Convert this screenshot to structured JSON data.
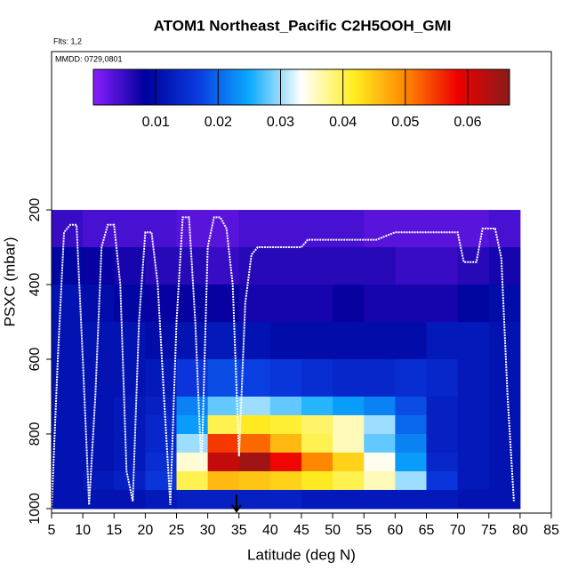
{
  "chart_data": {
    "type": "heatmap",
    "title": "ATOM1 Northeast_Pacific C2H5OOH_GMI",
    "flights_label": "Flts: 1,2",
    "date_label": "MMDD: 0729,0801",
    "x_label": "Latitude (deg N)",
    "y_label": "PSXC (mbar)",
    "xlim": [
      5,
      85
    ],
    "xticks": [
      5,
      10,
      15,
      20,
      25,
      30,
      35,
      40,
      45,
      50,
      55,
      60,
      65,
      70,
      75,
      80,
      85
    ],
    "ylim": [
      1012,
      -224
    ],
    "yticks": [
      200,
      400,
      600,
      800,
      1000
    ],
    "x_edges": [
      5,
      10,
      15,
      20,
      25,
      30,
      35,
      40,
      45,
      50,
      55,
      60,
      65,
      70,
      75,
      80
    ],
    "y_edges": [
      200,
      300,
      400,
      500,
      600,
      700,
      750,
      800,
      850,
      900,
      950,
      1000
    ],
    "z": [
      [
        0.005,
        0.004,
        0.004,
        0.004,
        0.003,
        0.003,
        0.004,
        0.004,
        0.004,
        0.004,
        0.003,
        0.003,
        0.003,
        0.003,
        0.004
      ],
      [
        0.009,
        0.008,
        0.007,
        0.006,
        0.006,
        0.005,
        0.006,
        0.006,
        0.006,
        0.006,
        0.006,
        0.005,
        0.005,
        0.006,
        0.007
      ],
      [
        0.011,
        0.01,
        0.009,
        0.008,
        0.008,
        0.008,
        0.007,
        0.007,
        0.007,
        0.008,
        0.007,
        0.007,
        0.007,
        0.009,
        0.01
      ],
      [
        0.011,
        0.011,
        0.011,
        0.01,
        0.011,
        0.012,
        0.011,
        0.01,
        0.01,
        0.01,
        0.01,
        0.01,
        0.012,
        0.012,
        0.011
      ],
      [
        0.011,
        0.011,
        0.011,
        0.012,
        0.016,
        0.018,
        0.017,
        0.016,
        0.015,
        0.014,
        0.014,
        0.015,
        0.014,
        0.012,
        0.011
      ],
      [
        0.011,
        0.011,
        0.012,
        0.013,
        0.022,
        0.028,
        0.03,
        0.028,
        0.026,
        0.024,
        0.022,
        0.018,
        0.013,
        0.012,
        0.011
      ],
      [
        0.011,
        0.011,
        0.012,
        0.014,
        0.024,
        0.04,
        0.042,
        0.041,
        0.039,
        0.036,
        0.03,
        0.02,
        0.013,
        0.012,
        0.011
      ],
      [
        0.011,
        0.011,
        0.012,
        0.014,
        0.03,
        0.055,
        0.052,
        0.046,
        0.04,
        0.036,
        0.028,
        0.022,
        0.013,
        0.012,
        0.011
      ],
      [
        0.011,
        0.011,
        0.012,
        0.015,
        0.035,
        0.062,
        0.065,
        0.058,
        0.05,
        0.044,
        0.034,
        0.024,
        0.014,
        0.012,
        0.011
      ],
      [
        0.011,
        0.012,
        0.013,
        0.016,
        0.04,
        0.046,
        0.045,
        0.044,
        0.042,
        0.04,
        0.036,
        0.03,
        0.016,
        0.012,
        0.011
      ],
      [
        0.011,
        0.011,
        0.011,
        0.012,
        0.013,
        0.013,
        0.013,
        0.013,
        0.012,
        0.012,
        0.012,
        0.012,
        0.012,
        0.011,
        0.011
      ]
    ],
    "colorbar_lim": [
      0,
      0.0667
    ],
    "colorbar_ticks": [
      0.01,
      0.02,
      0.03,
      0.04,
      0.05,
      0.06
    ],
    "colorscale": [
      "#8a1fff",
      "#00009c",
      "#0a3adf",
      "#0aaaff",
      "#ffffff",
      "#ffee22",
      "#ff8800",
      "#ee0000",
      "#8b1a1a"
    ],
    "track": {
      "color": "#ffffff",
      "x": [
        5,
        6,
        7,
        8,
        9,
        10,
        11,
        12,
        13,
        14,
        15,
        16,
        17,
        18,
        19,
        20,
        21,
        22,
        23,
        24,
        25,
        26,
        27,
        28,
        29,
        30,
        31,
        32,
        33,
        34,
        35,
        36,
        37,
        38,
        45,
        46,
        57,
        60,
        70,
        71,
        73,
        74,
        76,
        77,
        78,
        79
      ],
      "y": [
        1000,
        600,
        260,
        240,
        240,
        600,
        990,
        700,
        300,
        240,
        240,
        400,
        900,
        980,
        500,
        260,
        260,
        400,
        700,
        990,
        500,
        220,
        220,
        500,
        900,
        300,
        220,
        220,
        250,
        400,
        860,
        450,
        320,
        300,
        300,
        280,
        280,
        260,
        260,
        340,
        340,
        250,
        250,
        330,
        700,
        980
      ]
    }
  }
}
